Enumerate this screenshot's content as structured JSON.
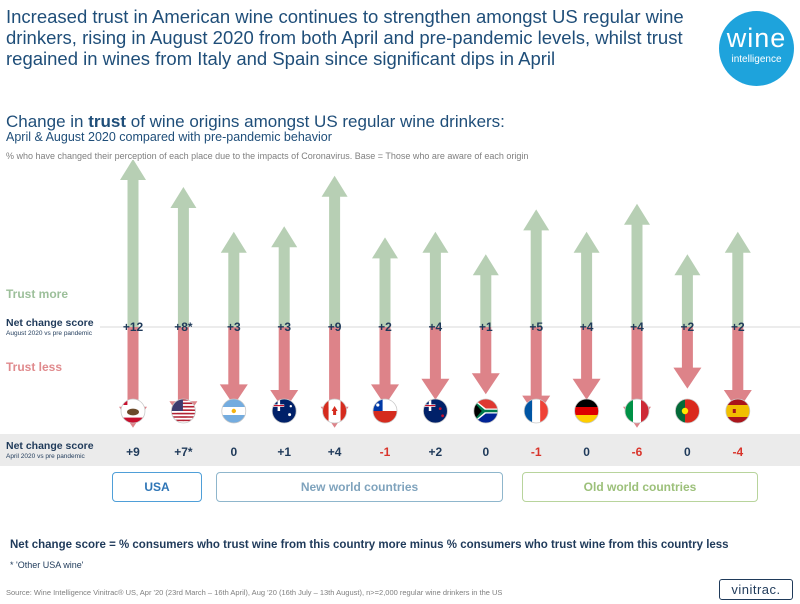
{
  "header": {
    "headline": "Increased trust in American wine continues to strengthen amongst US regular wine drinkers, rising in August 2020 from both April and pre-pandemic levels, whilst trust regained in wines from Italy and Spain since significant dips in April",
    "logo_word": "wine",
    "logo_sub": "intelligence"
  },
  "subtitle": {
    "pre": "Change in ",
    "bold": "trust",
    "post": " of wine origins amongst US regular wine drinkers:",
    "line2": "April & August 2020 compared with pre-pandemic behavior",
    "note": "% who have changed their perception of each place due to the  impacts of Coronavirus. Base = Those who are aware of each  origin"
  },
  "labels": {
    "trust_more": "Trust more",
    "trust_less": "Trust less",
    "net_change_aug": "Net change score",
    "net_change_aug_sub": "August 2020  vs pre pandemic",
    "net_change_apr": "Net change score",
    "net_change_apr_sub": "April 2020 vs pre pandemic"
  },
  "groups": {
    "usa": "USA",
    "new_world": "New world countries",
    "old_world": "Old world countries"
  },
  "chart_data": {
    "type": "bar",
    "title": "Change in trust of wine origins amongst US regular wine drinkers",
    "categories": [
      "California",
      "Other USA wine",
      "Argentina",
      "Australia",
      "Canada",
      "Chile",
      "New Zealand",
      "South Africa",
      "France",
      "Germany",
      "Italy",
      "Portugal",
      "Spain"
    ],
    "series": [
      {
        "name": "Trust more (Aug 2020)",
        "values": [
          30,
          25,
          17,
          18,
          27,
          16,
          17,
          13,
          21,
          17,
          22,
          13,
          17
        ]
      },
      {
        "name": "Trust less (Aug 2020)",
        "values": [
          18,
          17,
          14,
          15,
          18,
          14,
          13,
          12,
          16,
          13,
          18,
          11,
          15
        ]
      },
      {
        "name": "Net change Aug 2020 vs pre pandemic",
        "labels": [
          "+12",
          "+8*",
          "+3",
          "+3",
          "+9",
          "+2",
          "+4",
          "+1",
          "+5",
          "+4",
          "+4",
          "+2",
          "+2"
        ]
      },
      {
        "name": "Net change Apr 2020 vs pre pandemic",
        "labels": [
          "+9",
          "+7*",
          "0",
          "+1",
          "+4",
          "-1",
          "+2",
          "0",
          "-1",
          "0",
          "-6",
          "0",
          "-4"
        ]
      }
    ],
    "colors": {
      "up": "#b7cfb4",
      "down": "#dd8389",
      "neg_text": "#d9342b",
      "text": "#1f3a5a"
    }
  },
  "footer": {
    "definition": "Net change score = % consumers who trust wine from this country  more minus % consumers who trust wine from this country  less",
    "asterisk": "* 'Other USA wine'",
    "source": "Source: Wine Intelligence Vinitrac® US, Apr '20 (23rd March – 16th April), Aug '20 (16th July – 13th August), n>=2,000 regular wine drinkers in the US",
    "vinitrac": "vinitrac."
  }
}
